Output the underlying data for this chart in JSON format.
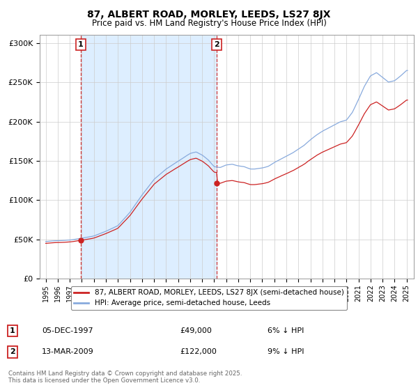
{
  "title_line1": "87, ALBERT ROAD, MORLEY, LEEDS, LS27 8JX",
  "title_line2": "Price paid vs. HM Land Registry's House Price Index (HPI)",
  "background_color": "#ffffff",
  "plot_bg_color": "#ffffff",
  "shade_color": "#ddeeff",
  "grid_color": "#cccccc",
  "hpi_color": "#88aadd",
  "price_color": "#cc2222",
  "marker1_year": 1997.92,
  "marker1_price": 49000,
  "marker2_year": 2009.21,
  "marker2_price": 122000,
  "legend_price_label": "87, ALBERT ROAD, MORLEY, LEEDS, LS27 8JX (semi-detached house)",
  "legend_hpi_label": "HPI: Average price, semi-detached house, Leeds",
  "note1_num": "1",
  "note1_date": "05-DEC-1997",
  "note1_price": "£49,000",
  "note1_hpi": "6% ↓ HPI",
  "note2_num": "2",
  "note2_date": "13-MAR-2009",
  "note2_price": "£122,000",
  "note2_hpi": "9% ↓ HPI",
  "copyright": "Contains HM Land Registry data © Crown copyright and database right 2025.\nThis data is licensed under the Open Government Licence v3.0.",
  "ylim_min": 0,
  "ylim_max": 310000,
  "yticks": [
    0,
    50000,
    100000,
    150000,
    200000,
    250000,
    300000
  ],
  "ytick_labels": [
    "£0",
    "£50K",
    "£100K",
    "£150K",
    "£200K",
    "£250K",
    "£300K"
  ]
}
